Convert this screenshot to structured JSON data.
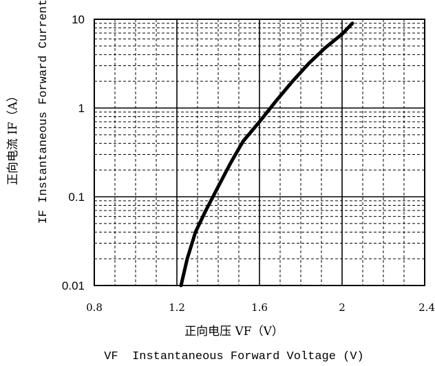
{
  "chart_data": {
    "type": "line",
    "x_scale": "linear",
    "y_scale": "log",
    "xlim": [
      0.8,
      2.4
    ],
    "ylim": [
      0.01,
      10
    ],
    "x_ticks": [
      0.8,
      1.2,
      1.6,
      2,
      2.4
    ],
    "x_tick_labels": [
      "0.8",
      "1.2",
      "1.6",
      "2",
      "2.4"
    ],
    "y_ticks": [
      0.01,
      0.1,
      1,
      10
    ],
    "y_tick_labels": [
      "0.01",
      "0.1",
      "1",
      "10"
    ],
    "grid": true,
    "xlabel_cn": "正向电压 VF（V）",
    "xlabel_en": "VF  Instantaneous Forward Voltage (V)",
    "ylabel_cn": "正向电流  IF（A）",
    "ylabel_en": "IF Instantaneous Forward Current (",
    "series": [
      {
        "x": [
          1.22,
          1.25,
          1.29,
          1.34,
          1.4,
          1.46,
          1.52,
          1.6,
          1.68,
          1.76,
          1.84,
          1.92,
          2.0,
          2.05
        ],
        "y": [
          0.01,
          0.02,
          0.04,
          0.07,
          0.13,
          0.24,
          0.42,
          0.7,
          1.2,
          2.0,
          3.2,
          4.8,
          6.8,
          9.0
        ],
        "color": "#000000"
      }
    ]
  }
}
